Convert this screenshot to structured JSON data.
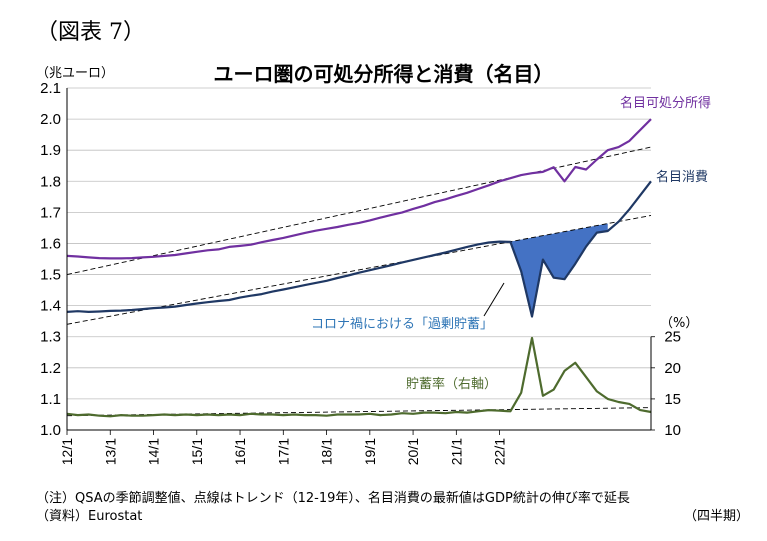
{
  "figure_label": "（図表 7）",
  "title": "ユーロ圏の可処分所得と消費（名目）",
  "left_unit": "（兆ユーロ）",
  "right_unit": "（%）",
  "note_1": "（注）QSAの季節調整値、点線はトレンド（12-19年）、名目消費の最新値はGDP統計の伸び率で延長",
  "note_2": "（資料）Eurostat",
  "note_3": "（四半期）",
  "colors": {
    "income": "#7030a0",
    "consumption": "#1f3864",
    "savings": "#4e6b2e",
    "gap_fill": "#4472c4"
  },
  "chart_data": {
    "type": "line",
    "title": "ユーロ圏の可処分所得と消費（名目）",
    "x_label": "（四半期）",
    "x_ticks": [
      "12/1",
      "13/1",
      "14/1",
      "15/1",
      "16/1",
      "17/1",
      "18/1",
      "19/1",
      "20/1",
      "21/1",
      "22/1"
    ],
    "y_left": {
      "label": "（兆ユーロ）",
      "lim": [
        1.0,
        2.1
      ],
      "ticks": [
        "1.0",
        "1.1",
        "1.2",
        "1.3",
        "1.4",
        "1.5",
        "1.6",
        "1.7",
        "1.8",
        "1.9",
        "2.0",
        "2.1"
      ]
    },
    "y_right": {
      "label": "（%）",
      "lim": [
        10,
        25
      ],
      "ticks": [
        "10",
        "15",
        "20",
        "25"
      ]
    },
    "series": [
      {
        "name": "名目可処分所得",
        "axis": "left",
        "values": [
          1.56,
          1.558,
          1.555,
          1.553,
          1.552,
          1.552,
          1.553,
          1.555,
          1.557,
          1.56,
          1.563,
          1.568,
          1.573,
          1.578,
          1.581,
          1.589,
          1.592,
          1.596,
          1.604,
          1.611,
          1.618,
          1.626,
          1.634,
          1.641,
          1.647,
          1.653,
          1.66,
          1.666,
          1.674,
          1.683,
          1.692,
          1.7,
          1.711,
          1.721,
          1.733,
          1.742,
          1.753,
          1.763,
          1.775,
          1.787,
          1.8,
          1.81,
          1.82,
          1.826,
          1.83,
          1.845,
          1.8,
          1.846,
          1.838,
          1.87,
          1.9,
          1.91,
          1.93,
          1.965,
          2.0
        ]
      },
      {
        "name": "名目消費",
        "axis": "left",
        "values": [
          1.38,
          1.382,
          1.38,
          1.381,
          1.383,
          1.384,
          1.386,
          1.389,
          1.392,
          1.394,
          1.397,
          1.402,
          1.407,
          1.411,
          1.415,
          1.418,
          1.426,
          1.432,
          1.437,
          1.445,
          1.452,
          1.459,
          1.466,
          1.473,
          1.48,
          1.489,
          1.497,
          1.506,
          1.514,
          1.522,
          1.53,
          1.539,
          1.547,
          1.555,
          1.563,
          1.571,
          1.58,
          1.589,
          1.597,
          1.603,
          1.606,
          1.605,
          1.51,
          1.365,
          1.548,
          1.49,
          1.485,
          1.535,
          1.59,
          1.635,
          1.64,
          1.67,
          1.71,
          1.755,
          1.8
        ]
      },
      {
        "name": "貯蓄率（右軸）",
        "axis": "right",
        "values": [
          12.6,
          12.4,
          12.5,
          12.3,
          12.2,
          12.4,
          12.3,
          12.3,
          12.4,
          12.5,
          12.4,
          12.5,
          12.4,
          12.5,
          12.4,
          12.5,
          12.4,
          12.6,
          12.5,
          12.5,
          12.4,
          12.5,
          12.4,
          12.4,
          12.3,
          12.5,
          12.5,
          12.5,
          12.6,
          12.4,
          12.5,
          12.7,
          12.6,
          12.8,
          12.8,
          12.7,
          12.9,
          12.8,
          13.0,
          13.2,
          13.1,
          13.0,
          16.0,
          24.8,
          15.5,
          16.5,
          19.5,
          20.8,
          18.5,
          16.2,
          15.0,
          14.5,
          14.2,
          13.2,
          12.9
        ]
      }
    ],
    "trend_lines": [
      {
        "name": "可処分所得トレンド",
        "axis": "left",
        "start": 1.5,
        "end": 1.91
      },
      {
        "name": "消費トレンド",
        "axis": "left",
        "start": 1.34,
        "end": 1.69
      },
      {
        "name": "貯蓄率トレンド",
        "axis": "right",
        "start": 12.3,
        "end": 13.6
      }
    ],
    "annotations": {
      "income_label": "名目可処分所得",
      "consumption_label": "名目消費",
      "savings_label": "貯蓄率（右軸）",
      "gap_label": "コロナ禍における「過剰貯蓄」"
    },
    "grid": true
  }
}
